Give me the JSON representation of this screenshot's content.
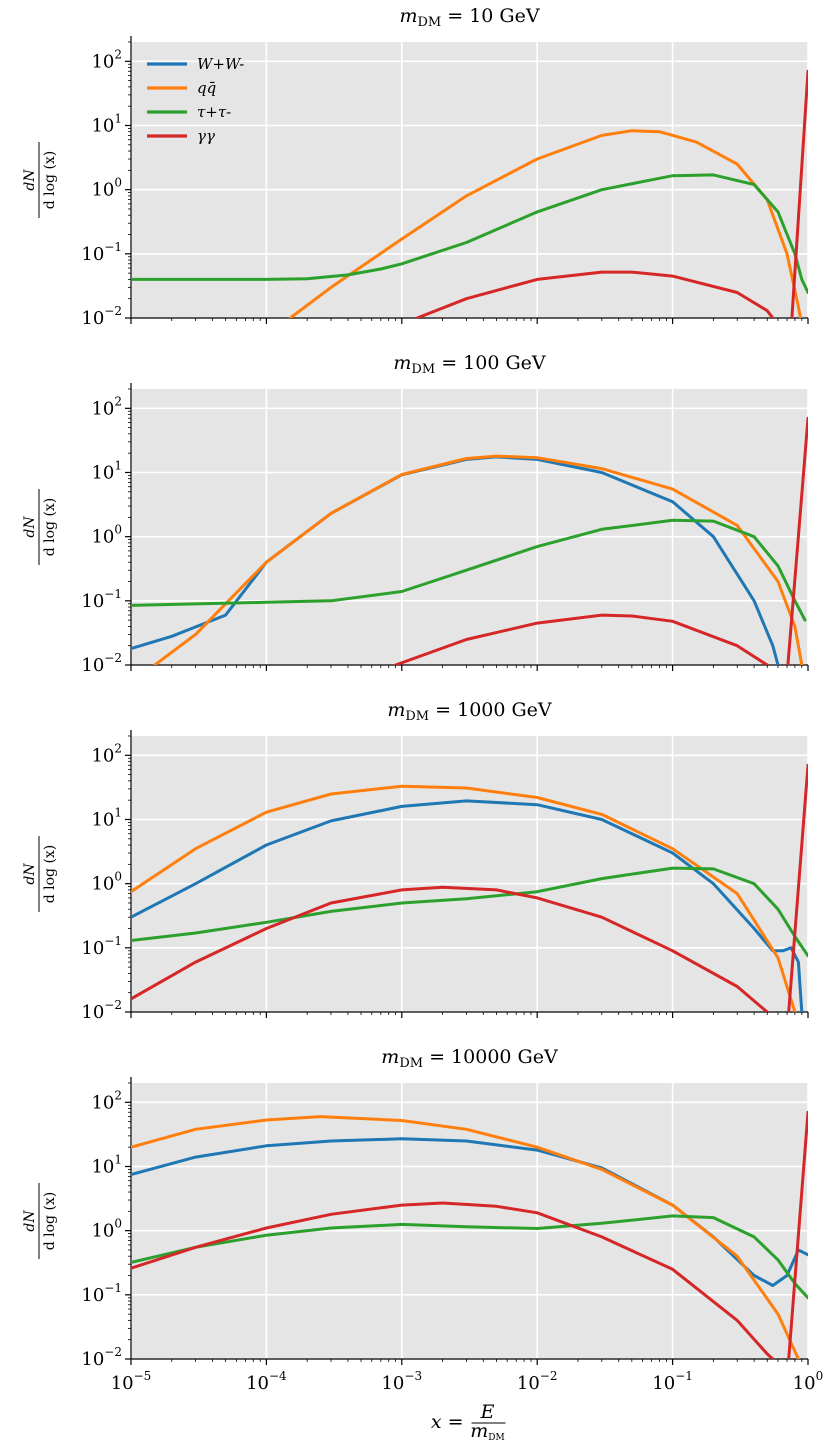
{
  "chart_data": [
    {
      "type": "line",
      "title": "m_DM = 10 GeV",
      "title_parts": {
        "var": "m",
        "sub": "DM",
        "rest": " = 10 GeV"
      },
      "ylabel": "dN/dlog(x)",
      "xscale": "log",
      "yscale": "log",
      "xlim": [
        1e-05,
        1
      ],
      "ylim": [
        0.01,
        200
      ],
      "grid": true,
      "legend": "top-left",
      "series": [
        {
          "name": "W+W-",
          "color": "#1f77b4",
          "points": []
        },
        {
          "name": "qq̄",
          "color": "#ff7f0e",
          "points": [
            [
              0.00015,
              0.01
            ],
            [
              0.0003,
              0.03
            ],
            [
              0.001,
              0.17
            ],
            [
              0.003,
              0.8
            ],
            [
              0.01,
              3.0
            ],
            [
              0.03,
              7.0
            ],
            [
              0.05,
              8.3
            ],
            [
              0.08,
              8.0
            ],
            [
              0.15,
              5.5
            ],
            [
              0.3,
              2.5
            ],
            [
              0.5,
              0.7
            ],
            [
              0.7,
              0.1
            ],
            [
              0.85,
              0.015
            ],
            [
              0.88,
              0.01
            ]
          ]
        },
        {
          "name": "τ+τ-",
          "color": "#2ca02c",
          "points": [
            [
              1e-05,
              0.04
            ],
            [
              0.0001,
              0.04
            ],
            [
              0.0002,
              0.041
            ],
            [
              0.0004,
              0.047
            ],
            [
              0.0007,
              0.058
            ],
            [
              0.001,
              0.07
            ],
            [
              0.003,
              0.15
            ],
            [
              0.01,
              0.45
            ],
            [
              0.03,
              1.0
            ],
            [
              0.1,
              1.65
            ],
            [
              0.2,
              1.7
            ],
            [
              0.4,
              1.2
            ],
            [
              0.6,
              0.45
            ],
            [
              0.8,
              0.1
            ],
            [
              0.9,
              0.04
            ],
            [
              1,
              0.025
            ]
          ]
        },
        {
          "name": "γγ",
          "color": "#d62728",
          "points": [
            [
              0.0013,
              0.01
            ],
            [
              0.003,
              0.02
            ],
            [
              0.01,
              0.04
            ],
            [
              0.03,
              0.052
            ],
            [
              0.05,
              0.052
            ],
            [
              0.1,
              0.045
            ],
            [
              0.3,
              0.025
            ],
            [
              0.5,
              0.013
            ],
            [
              0.55,
              0.01
            ]
          ]
        },
        {
          "color": "#d62728",
          "points": [
            [
              0.76,
              0.01
            ],
            [
              1,
              70
            ]
          ]
        }
      ]
    },
    {
      "type": "line",
      "title": "m_DM = 100 GeV",
      "title_parts": {
        "var": "m",
        "sub": "DM",
        "rest": " = 100 GeV"
      },
      "ylabel": "dN/dlog(x)",
      "xscale": "log",
      "yscale": "log",
      "xlim": [
        1e-05,
        1
      ],
      "ylim": [
        0.01,
        200
      ],
      "grid": true,
      "series": [
        {
          "name": "W+W-",
          "color": "#1f77b4",
          "points": [
            [
              1e-05,
              0.018
            ],
            [
              2e-05,
              0.028
            ],
            [
              5e-05,
              0.06
            ],
            [
              0.0001,
              0.4
            ],
            [
              0.0003,
              2.3
            ],
            [
              0.001,
              9.2
            ],
            [
              0.003,
              16.0
            ],
            [
              0.005,
              17.5
            ],
            [
              0.01,
              16.0
            ],
            [
              0.03,
              10.0
            ],
            [
              0.1,
              3.5
            ],
            [
              0.2,
              1.0
            ],
            [
              0.4,
              0.1
            ],
            [
              0.55,
              0.02
            ],
            [
              0.6,
              0.01
            ]
          ]
        },
        {
          "name": "qq̄",
          "color": "#ff7f0e",
          "points": [
            [
              1.5e-05,
              0.01
            ],
            [
              3e-05,
              0.03
            ],
            [
              0.0001,
              0.4
            ],
            [
              0.0003,
              2.3
            ],
            [
              0.001,
              9.3
            ],
            [
              0.003,
              16.5
            ],
            [
              0.005,
              18.0
            ],
            [
              0.01,
              17.0
            ],
            [
              0.03,
              11.5
            ],
            [
              0.1,
              5.5
            ],
            [
              0.3,
              1.5
            ],
            [
              0.6,
              0.2
            ],
            [
              0.8,
              0.04
            ],
            [
              0.9,
              0.01
            ]
          ]
        },
        {
          "name": "τ+τ-",
          "color": "#2ca02c",
          "points": [
            [
              1e-05,
              0.085
            ],
            [
              0.0001,
              0.095
            ],
            [
              0.0003,
              0.1
            ],
            [
              0.001,
              0.14
            ],
            [
              0.003,
              0.3
            ],
            [
              0.01,
              0.7
            ],
            [
              0.03,
              1.3
            ],
            [
              0.1,
              1.8
            ],
            [
              0.2,
              1.75
            ],
            [
              0.4,
              1.0
            ],
            [
              0.6,
              0.35
            ],
            [
              0.8,
              0.1
            ],
            [
              0.95,
              0.05
            ]
          ]
        },
        {
          "name": "γγ",
          "color": "#d62728",
          "points": [
            [
              0.0009,
              0.01
            ],
            [
              0.003,
              0.025
            ],
            [
              0.01,
              0.045
            ],
            [
              0.03,
              0.06
            ],
            [
              0.05,
              0.058
            ],
            [
              0.1,
              0.048
            ],
            [
              0.3,
              0.02
            ],
            [
              0.5,
              0.01
            ]
          ]
        },
        {
          "color": "#d62728",
          "points": [
            [
              0.71,
              0.01
            ],
            [
              1,
              70
            ]
          ]
        }
      ]
    },
    {
      "type": "line",
      "title": "m_DM = 1000 GeV",
      "title_parts": {
        "var": "m",
        "sub": "DM",
        "rest": " = 1000 GeV"
      },
      "ylabel": "dN/dlog(x)",
      "xscale": "log",
      "yscale": "log",
      "xlim": [
        1e-05,
        1
      ],
      "ylim": [
        0.01,
        200
      ],
      "grid": true,
      "series": [
        {
          "name": "W+W-",
          "color": "#1f77b4",
          "points": [
            [
              1e-05,
              0.3
            ],
            [
              3e-05,
              1.0
            ],
            [
              0.0001,
              4.0
            ],
            [
              0.0003,
              9.5
            ],
            [
              0.001,
              16.0
            ],
            [
              0.003,
              19.5
            ],
            [
              0.01,
              17.0
            ],
            [
              0.03,
              10.0
            ],
            [
              0.1,
              3.0
            ],
            [
              0.2,
              1.0
            ],
            [
              0.4,
              0.2
            ],
            [
              0.55,
              0.09
            ],
            [
              0.65,
              0.09
            ],
            [
              0.75,
              0.1
            ],
            [
              0.85,
              0.06
            ],
            [
              0.9,
              0.01
            ]
          ]
        },
        {
          "name": "qq̄",
          "color": "#ff7f0e",
          "points": [
            [
              1e-05,
              0.75
            ],
            [
              3e-05,
              3.5
            ],
            [
              0.0001,
              13.0
            ],
            [
              0.0003,
              25.0
            ],
            [
              0.001,
              33.0
            ],
            [
              0.003,
              31.0
            ],
            [
              0.01,
              22.0
            ],
            [
              0.03,
              12.0
            ],
            [
              0.1,
              3.5
            ],
            [
              0.3,
              0.7
            ],
            [
              0.6,
              0.07
            ],
            [
              0.8,
              0.01
            ]
          ]
        },
        {
          "name": "τ+τ-",
          "color": "#2ca02c",
          "points": [
            [
              1e-05,
              0.13
            ],
            [
              3e-05,
              0.17
            ],
            [
              0.0001,
              0.25
            ],
            [
              0.0003,
              0.37
            ],
            [
              0.001,
              0.5
            ],
            [
              0.003,
              0.58
            ],
            [
              0.01,
              0.75
            ],
            [
              0.03,
              1.2
            ],
            [
              0.1,
              1.75
            ],
            [
              0.2,
              1.7
            ],
            [
              0.4,
              1.0
            ],
            [
              0.6,
              0.4
            ],
            [
              0.8,
              0.15
            ],
            [
              1,
              0.075
            ]
          ]
        },
        {
          "name": "γγ",
          "color": "#d62728",
          "points": [
            [
              1e-05,
              0.016
            ],
            [
              3e-05,
              0.06
            ],
            [
              0.0001,
              0.2
            ],
            [
              0.0003,
              0.5
            ],
            [
              0.001,
              0.8
            ],
            [
              0.002,
              0.88
            ],
            [
              0.005,
              0.8
            ],
            [
              0.01,
              0.6
            ],
            [
              0.03,
              0.3
            ],
            [
              0.1,
              0.09
            ],
            [
              0.3,
              0.025
            ],
            [
              0.5,
              0.01
            ]
          ]
        },
        {
          "color": "#d62728",
          "points": [
            [
              0.72,
              0.01
            ],
            [
              1,
              70
            ]
          ]
        }
      ]
    },
    {
      "type": "line",
      "title": "m_DM = 10000 GeV",
      "title_parts": {
        "var": "m",
        "sub": "DM",
        "rest": " = 10000 GeV"
      },
      "ylabel": "dN/dlog(x)",
      "xlabel": "x = E/m_DM",
      "xscale": "log",
      "yscale": "log",
      "xlim": [
        1e-05,
        1
      ],
      "ylim": [
        0.01,
        200
      ],
      "xtick_labels": [
        "10^-5",
        "10^-4",
        "10^-3",
        "10^-2",
        "10^-1",
        "10^0"
      ],
      "grid": true,
      "series": [
        {
          "name": "W+W-",
          "color": "#1f77b4",
          "points": [
            [
              1e-05,
              7.5
            ],
            [
              3e-05,
              14.0
            ],
            [
              0.0001,
              21.0
            ],
            [
              0.0003,
              25.0
            ],
            [
              0.001,
              27.0
            ],
            [
              0.003,
              25.0
            ],
            [
              0.01,
              18.0
            ],
            [
              0.03,
              9.5
            ],
            [
              0.1,
              2.5
            ],
            [
              0.2,
              0.8
            ],
            [
              0.4,
              0.2
            ],
            [
              0.55,
              0.14
            ],
            [
              0.7,
              0.2
            ],
            [
              0.85,
              0.5
            ],
            [
              1,
              0.42
            ]
          ]
        },
        {
          "name": "qq̄",
          "color": "#ff7f0e",
          "points": [
            [
              1e-05,
              20.0
            ],
            [
              3e-05,
              38.0
            ],
            [
              0.0001,
              53.0
            ],
            [
              0.00025,
              60.0
            ],
            [
              0.001,
              52.0
            ],
            [
              0.003,
              38.0
            ],
            [
              0.01,
              20.0
            ],
            [
              0.03,
              9.0
            ],
            [
              0.1,
              2.5
            ],
            [
              0.3,
              0.4
            ],
            [
              0.6,
              0.05
            ],
            [
              0.85,
              0.01
            ]
          ]
        },
        {
          "name": "τ+τ-",
          "color": "#2ca02c",
          "points": [
            [
              1e-05,
              0.32
            ],
            [
              3e-05,
              0.55
            ],
            [
              0.0001,
              0.85
            ],
            [
              0.0003,
              1.1
            ],
            [
              0.001,
              1.25
            ],
            [
              0.003,
              1.15
            ],
            [
              0.01,
              1.08
            ],
            [
              0.03,
              1.3
            ],
            [
              0.1,
              1.7
            ],
            [
              0.2,
              1.6
            ],
            [
              0.4,
              0.8
            ],
            [
              0.6,
              0.35
            ],
            [
              0.8,
              0.15
            ],
            [
              1,
              0.09
            ]
          ]
        },
        {
          "name": "γγ",
          "color": "#d62728",
          "points": [
            [
              1e-05,
              0.26
            ],
            [
              3e-05,
              0.55
            ],
            [
              0.0001,
              1.1
            ],
            [
              0.0003,
              1.8
            ],
            [
              0.001,
              2.5
            ],
            [
              0.002,
              2.7
            ],
            [
              0.005,
              2.4
            ],
            [
              0.01,
              1.9
            ],
            [
              0.03,
              0.8
            ],
            [
              0.1,
              0.25
            ],
            [
              0.3,
              0.04
            ],
            [
              0.5,
              0.012
            ],
            [
              0.55,
              0.01
            ]
          ]
        },
        {
          "color": "#d62728",
          "points": [
            [
              0.72,
              0.01
            ],
            [
              1,
              70
            ]
          ]
        }
      ]
    }
  ],
  "axis": {
    "y_ticks": [
      0.01,
      0.1,
      1,
      10,
      100
    ],
    "x_ticks": [
      1e-05,
      0.0001,
      0.001,
      0.01,
      0.1,
      1
    ]
  },
  "ylabel_parts": {
    "num": "dN",
    "den": "d log (x)"
  },
  "xlabel_parts": {
    "lhs": "x = ",
    "num": "E",
    "den_var": "m",
    "den_sub": "DM"
  }
}
